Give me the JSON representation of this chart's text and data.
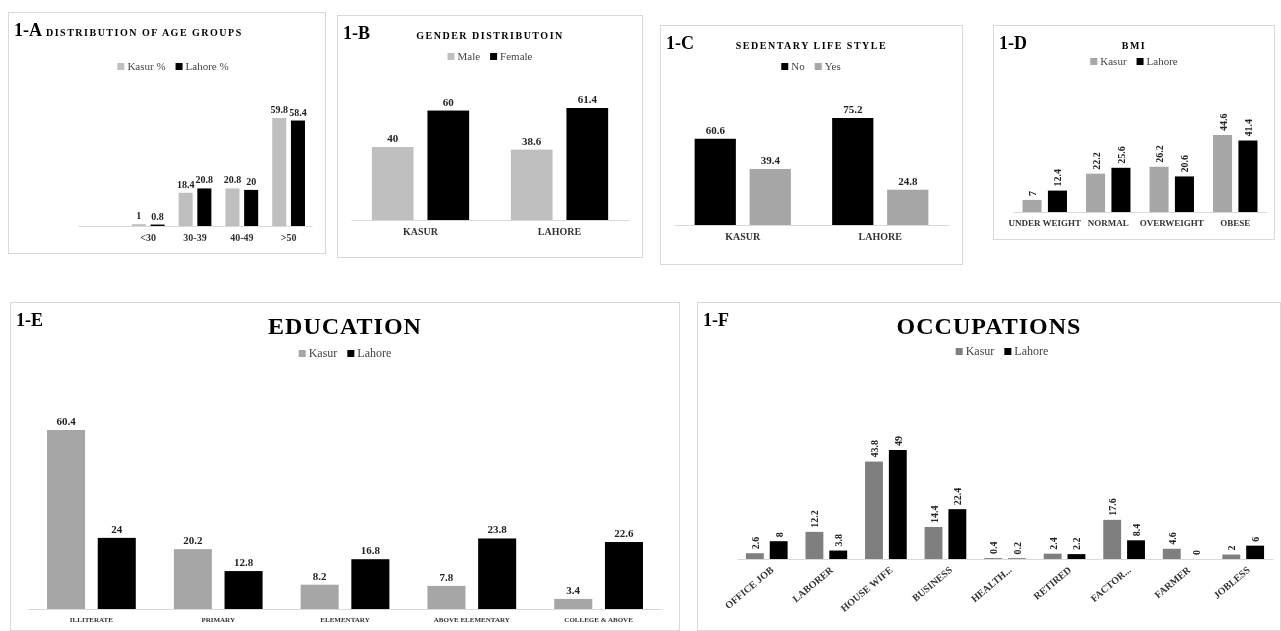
{
  "chart_data": [
    {
      "type": "bar",
      "title": "DISTRIBUTION OF AGE GROUPS",
      "annotations": [
        "1-A"
      ],
      "categories": [
        null,
        "<30",
        "30-39",
        "40-49",
        ">50"
      ],
      "series": [
        {
          "name": "Kasur %",
          "color": "#bfbfbf",
          "values": [
            null,
            1,
            18.4,
            20.8,
            59.8
          ]
        },
        {
          "name": "Lahore %",
          "color": "#000000",
          "values": [
            null,
            0.8,
            20.8,
            20,
            58.4
          ]
        }
      ],
      "data_labels": true,
      "legend": "top"
    },
    {
      "type": "bar",
      "title": "GENDER DISTRIBUTOIN",
      "annotations": [
        "1-B"
      ],
      "categories": [
        "KASUR",
        "LAHORE"
      ],
      "series": [
        {
          "name": "Male",
          "color": "#bfbfbf",
          "values": [
            40,
            38.6
          ]
        },
        {
          "name": "Female",
          "color": "#000000",
          "values": [
            60,
            61.4
          ]
        }
      ],
      "data_labels": true,
      "legend": "top"
    },
    {
      "type": "bar",
      "title": "SEDENTARY LIFE STYLE",
      "annotations": [
        "1-C"
      ],
      "categories": [
        "KASUR",
        "LAHORE"
      ],
      "series": [
        {
          "name": "No",
          "color": "#000000",
          "values": [
            60.6,
            75.2
          ]
        },
        {
          "name": "Yes",
          "color": "#a6a6a6",
          "values": [
            39.4,
            24.8
          ]
        }
      ],
      "data_labels": true,
      "legend": "top"
    },
    {
      "type": "bar",
      "title": "BMI",
      "annotations": [
        "1-D"
      ],
      "categories": [
        "UNDER  WEIGHT",
        "NORMAL",
        "OVERWEIGHT",
        "OBESE"
      ],
      "series": [
        {
          "name": "Kasur",
          "color": "#a6a6a6",
          "values": [
            7,
            22.2,
            26.2,
            44.6
          ]
        },
        {
          "name": "Lahore",
          "color": "#000000",
          "values": [
            12.4,
            25.6,
            20.6,
            41.4
          ]
        }
      ],
      "data_labels": true,
      "legend": "top"
    },
    {
      "type": "bar",
      "title": "EDUCATION",
      "annotations": [
        "1-E"
      ],
      "categories": [
        "ILLITERATE",
        "PRIMARY",
        "ELEMENTARY",
        "ABOVE  ELEMENTARY",
        "COLLEGE  & ABOVE"
      ],
      "series": [
        {
          "name": "Kasur",
          "color": "#a6a6a6",
          "values": [
            60.4,
            20.2,
            8.2,
            7.8,
            3.4
          ]
        },
        {
          "name": "Lahore",
          "color": "#000000",
          "values": [
            24,
            12.8,
            16.8,
            23.8,
            22.6
          ]
        }
      ],
      "data_labels": true,
      "legend": "top"
    },
    {
      "type": "bar",
      "title": "OCCUPATIONS",
      "annotations": [
        "1-F"
      ],
      "categories": [
        "OFFICE JOB",
        "LABORER",
        "HOUSE WIFE",
        "BUSINESS",
        "HEALTH...",
        "RETIRED",
        "FACTOR...",
        "FARMER",
        "JOBLESS"
      ],
      "series": [
        {
          "name": "Kasur",
          "color": "#7f7f7f",
          "values": [
            2.6,
            12.2,
            43.8,
            14.4,
            0.4,
            2.4,
            17.6,
            4.6,
            2
          ]
        },
        {
          "name": "Lahore",
          "color": "#000000",
          "values": [
            8,
            3.8,
            49,
            22.4,
            0.2,
            2.2,
            8.4,
            0,
            6
          ]
        }
      ],
      "data_labels": true,
      "legend": "top"
    }
  ]
}
